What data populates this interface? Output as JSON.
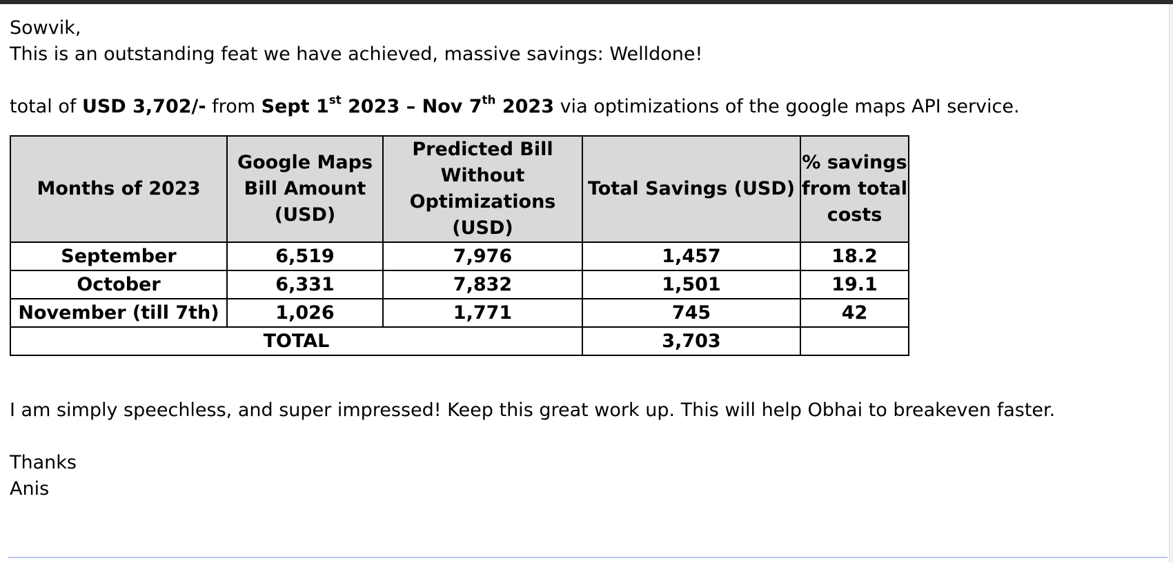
{
  "email": {
    "greeting": "Sowvik,",
    "line1": "This is an outstanding feat we have achieved, massive savings: Welldone!",
    "summary": {
      "prefix": "total of ",
      "amount": "USD 3,702/-",
      "from": " from ",
      "start_text": "Sept 1",
      "start_sup": "st",
      "start_year": " 2023 – Nov 7",
      "end_sup": "th",
      "end_year": " 2023",
      "suffix": " via optimizations of the google maps API service."
    },
    "closing_line": "I am simply speechless, and super impressed! Keep this great work up. This will help Obhai to breakeven faster.",
    "thanks": "Thanks",
    "signature": "Anis"
  },
  "table": {
    "headers": [
      "Months of 2023",
      "Google Maps Bill Amount (USD)",
      "Predicted Bill Without Optimizations (USD)",
      "Total Savings (USD)",
      "% savings from total costs"
    ],
    "rows": [
      [
        "September",
        "6,519",
        "7,976",
        "1,457",
        "18.2"
      ],
      [
        "October",
        "6,331",
        "7,832",
        "1,501",
        "19.1"
      ],
      [
        "November (till 7th)",
        "1,026",
        "1,771",
        "745",
        "42"
      ]
    ],
    "total_label": "TOTAL",
    "total_value": "3,703",
    "total_percent": ""
  }
}
